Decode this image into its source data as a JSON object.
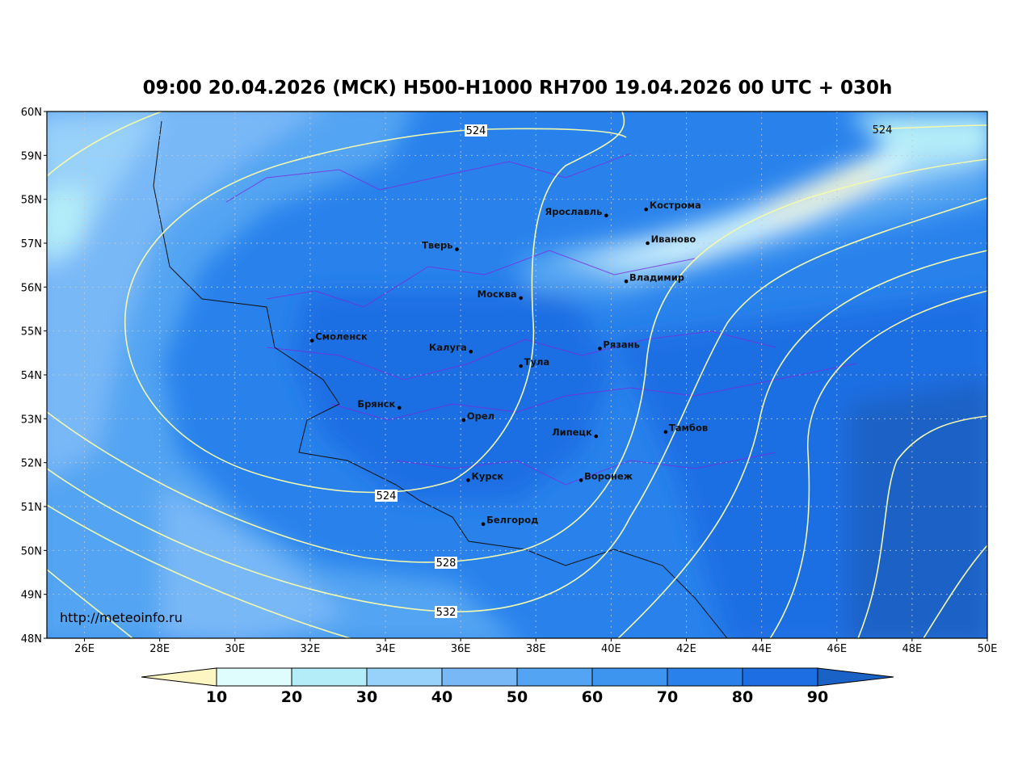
{
  "title": "09:00 20.04.2026 (МСК) H500-H1000 RH700 19.04.2026 00 UTC + 030h",
  "watermark": "http://meteoinfo.ru",
  "map": {
    "lon_range": [
      25,
      50
    ],
    "lat_range": [
      48,
      60
    ],
    "lon_ticks": [
      {
        "v": 26,
        "t": "26E"
      },
      {
        "v": 28,
        "t": "28E"
      },
      {
        "v": 30,
        "t": "30E"
      },
      {
        "v": 32,
        "t": "32E"
      },
      {
        "v": 34,
        "t": "34E"
      },
      {
        "v": 36,
        "t": "36E"
      },
      {
        "v": 38,
        "t": "38E"
      },
      {
        "v": 40,
        "t": "40E"
      },
      {
        "v": 42,
        "t": "42E"
      },
      {
        "v": 44,
        "t": "44E"
      },
      {
        "v": 46,
        "t": "46E"
      },
      {
        "v": 48,
        "t": "48E"
      },
      {
        "v": 50,
        "t": "50E"
      }
    ],
    "lat_ticks": [
      {
        "v": 48,
        "t": "48N"
      },
      {
        "v": 49,
        "t": "49N"
      },
      {
        "v": 50,
        "t": "50N"
      },
      {
        "v": 51,
        "t": "51N"
      },
      {
        "v": 52,
        "t": "52N"
      },
      {
        "v": 53,
        "t": "53N"
      },
      {
        "v": 54,
        "t": "54N"
      },
      {
        "v": 55,
        "t": "55N"
      },
      {
        "v": 56,
        "t": "56N"
      },
      {
        "v": 57,
        "t": "57N"
      },
      {
        "v": 58,
        "t": "58N"
      },
      {
        "v": 59,
        "t": "59N"
      },
      {
        "v": 60,
        "t": "60N"
      }
    ],
    "grid": true,
    "cities": [
      {
        "name": "Ярославль",
        "lon": 39.87,
        "lat": 57.63,
        "side": "left"
      },
      {
        "name": "Кострома",
        "lon": 40.93,
        "lat": 57.77,
        "side": "right"
      },
      {
        "name": "Тверь",
        "lon": 35.9,
        "lat": 56.86,
        "side": "left"
      },
      {
        "name": "Иваново",
        "lon": 40.97,
        "lat": 57.0,
        "side": "right"
      },
      {
        "name": "Владимир",
        "lon": 40.4,
        "lat": 56.13,
        "side": "right"
      },
      {
        "name": "Москва",
        "lon": 37.6,
        "lat": 55.75,
        "side": "left"
      },
      {
        "name": "Смоленск",
        "lon": 32.05,
        "lat": 54.78,
        "side": "right"
      },
      {
        "name": "Калуга",
        "lon": 36.27,
        "lat": 54.53,
        "side": "left"
      },
      {
        "name": "Тула",
        "lon": 37.6,
        "lat": 54.2,
        "side": "right"
      },
      {
        "name": "Рязань",
        "lon": 39.7,
        "lat": 54.6,
        "side": "right"
      },
      {
        "name": "Брянск",
        "lon": 34.37,
        "lat": 53.25,
        "side": "left"
      },
      {
        "name": "Орел",
        "lon": 36.08,
        "lat": 52.97,
        "side": "right"
      },
      {
        "name": "Липецк",
        "lon": 39.6,
        "lat": 52.6,
        "side": "left"
      },
      {
        "name": "Тамбов",
        "lon": 41.45,
        "lat": 52.7,
        "side": "right"
      },
      {
        "name": "Курск",
        "lon": 36.2,
        "lat": 51.6,
        "side": "right"
      },
      {
        "name": "Воронеж",
        "lon": 39.2,
        "lat": 51.6,
        "side": "right"
      },
      {
        "name": "Белгород",
        "lon": 36.6,
        "lat": 50.6,
        "side": "right"
      }
    ],
    "contour_labels": [
      "524",
      "524",
      "524",
      "528",
      "532"
    ]
  },
  "colorbar": {
    "ticks": [
      "10",
      "20",
      "30",
      "40",
      "50",
      "60",
      "70",
      "80",
      "90"
    ],
    "colors": [
      "#fdf6c3",
      "#e0fdfd",
      "#b4ecf8",
      "#98d1f9",
      "#79b8f7",
      "#53a4f2",
      "#3d95f0",
      "#2982ec",
      "#1e6ee3",
      "#1a62c6"
    ]
  }
}
